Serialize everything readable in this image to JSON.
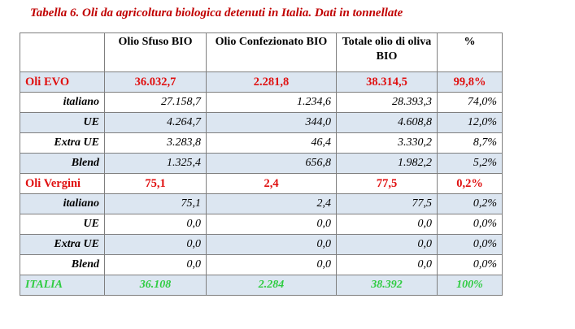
{
  "title": "Tabella 6. Oli da agricoltura biologica detenuti in Italia. Dati in tonnellate",
  "headers": [
    "",
    "Olio Sfuso BIO",
    "Olio Confezionato BIO",
    "Totale olio di oliva BIO",
    "%"
  ],
  "rows": [
    {
      "type": "group",
      "shade": true,
      "cells": [
        "Oli EVO",
        "36.032,7",
        "2.281,8",
        "38.314,5",
        "99,8%"
      ]
    },
    {
      "type": "sub",
      "shade": false,
      "cells": [
        "italiano",
        "27.158,7",
        "1.234,6",
        "28.393,3",
        "74,0%"
      ]
    },
    {
      "type": "sub",
      "shade": true,
      "cells": [
        "UE",
        "4.264,7",
        "344,0",
        "4.608,8",
        "12,0%"
      ]
    },
    {
      "type": "sub",
      "shade": false,
      "cells": [
        "Extra UE",
        "3.283,8",
        "46,4",
        "3.330,2",
        "8,7%"
      ]
    },
    {
      "type": "sub",
      "shade": true,
      "cells": [
        "Blend",
        "1.325,4",
        "656,8",
        "1.982,2",
        "5,2%"
      ]
    },
    {
      "type": "group",
      "shade": false,
      "cells": [
        "Oli Vergini",
        "75,1",
        "2,4",
        "77,5",
        "0,2%"
      ]
    },
    {
      "type": "sub",
      "shade": true,
      "cells": [
        "italiano",
        "75,1",
        "2,4",
        "77,5",
        "0,2%"
      ]
    },
    {
      "type": "sub",
      "shade": false,
      "cells": [
        "UE",
        "0,0",
        "0,0",
        "0,0",
        "0,0%"
      ]
    },
    {
      "type": "sub",
      "shade": true,
      "cells": [
        "Extra UE",
        "0,0",
        "0,0",
        "0,0",
        "0,0%"
      ]
    },
    {
      "type": "sub",
      "shade": false,
      "cells": [
        "Blend",
        "0,0",
        "0,0",
        "0,0",
        "0,0%"
      ]
    },
    {
      "type": "total",
      "shade": true,
      "cells": [
        "ITALIA",
        "36.108",
        "2.284",
        "38.392",
        "100%"
      ]
    }
  ],
  "colors": {
    "group_text": "#e01010",
    "total_text": "#2ecc40",
    "title_text": "#c00000",
    "shade": "#dce6f1"
  }
}
